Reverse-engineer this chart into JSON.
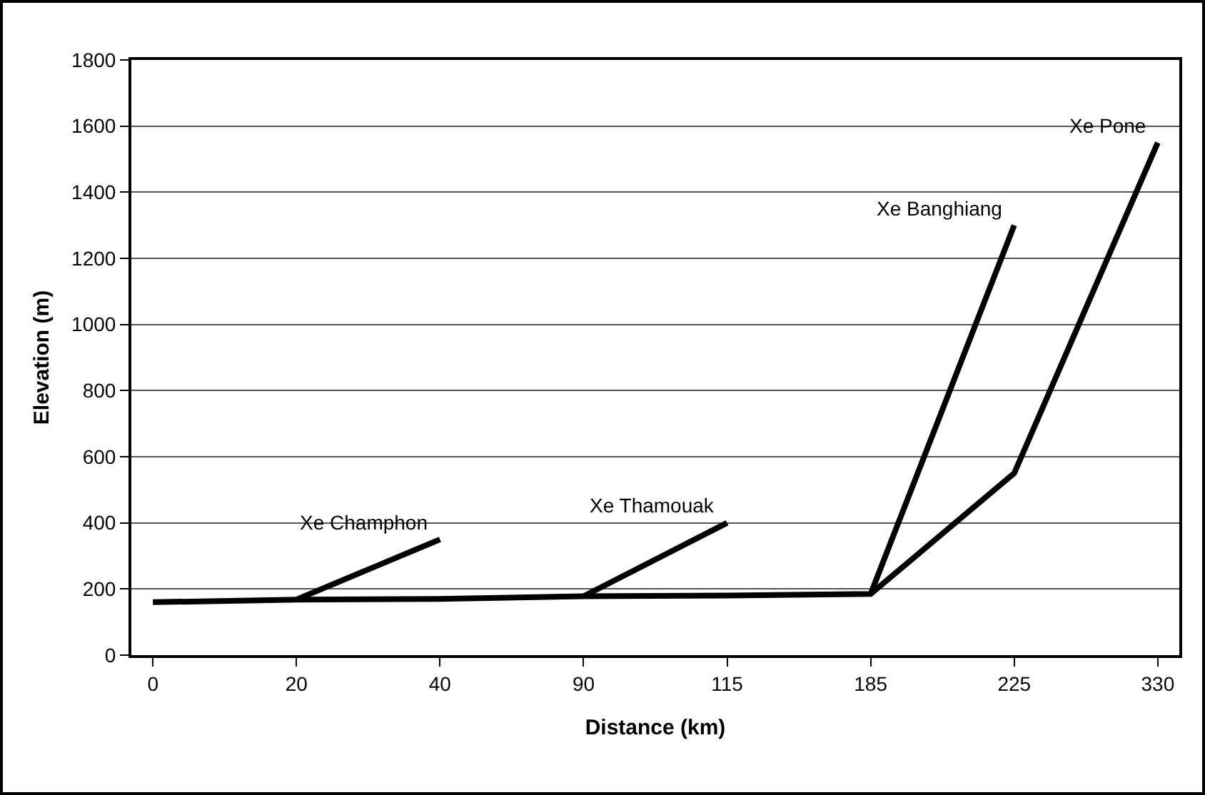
{
  "chart_data": {
    "type": "line",
    "xlabel": "Distance (km)",
    "ylabel": "Elevation (m)",
    "categories": [
      "0",
      "20",
      "40",
      "90",
      "115",
      "185",
      "225",
      "330"
    ],
    "series": [
      {
        "name": "Xe Pone",
        "color": "#000000",
        "values": [
          160,
          168,
          170,
          178,
          180,
          185,
          550,
          1550
        ]
      },
      {
        "name": "Xe Champhon",
        "color": "#000000",
        "values": [
          null,
          168,
          350,
          null,
          null,
          null,
          null,
          null
        ]
      },
      {
        "name": "Xe Thamouak",
        "color": "#000000",
        "values": [
          null,
          null,
          null,
          178,
          400,
          null,
          null,
          null
        ]
      },
      {
        "name": "Xe Banghiang",
        "color": "#000000",
        "values": [
          null,
          null,
          null,
          null,
          null,
          185,
          1300,
          null
        ]
      }
    ],
    "ylim": [
      0,
      1800
    ],
    "yticks": [
      0,
      200,
      400,
      600,
      800,
      1000,
      1200,
      1400,
      1600,
      1800
    ],
    "grid": "y",
    "legend": false,
    "marker": "none",
    "line_style": "solid"
  }
}
